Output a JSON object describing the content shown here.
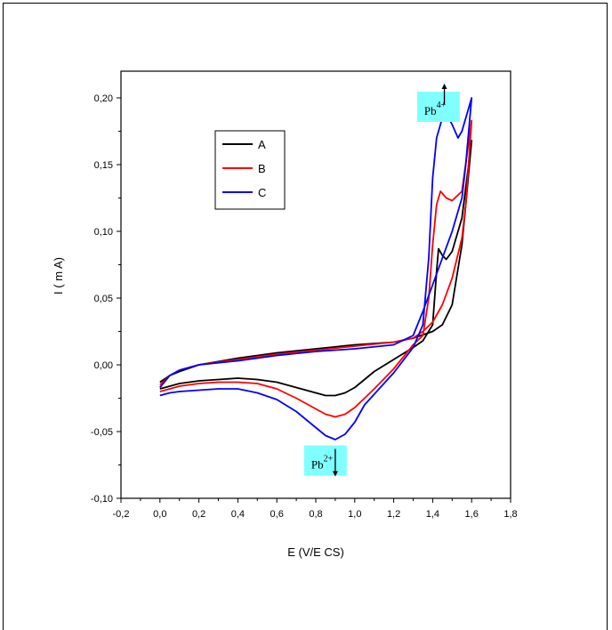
{
  "chart_data": {
    "type": "line",
    "xlabel": "E (V/E CS)",
    "ylabel": "I ( m A)",
    "xlim": [
      -0.2,
      1.8
    ],
    "ylim": [
      -0.1,
      0.22
    ],
    "x_ticks": [
      "-0,2",
      "0,0",
      "0,2",
      "0,4",
      "0,6",
      "0,8",
      "1,0",
      "1,2",
      "1,4",
      "1,6",
      "1,8"
    ],
    "y_ticks": [
      "-0,10",
      "-0,05",
      "0,00",
      "0,05",
      "0,10",
      "0,15",
      "0,20"
    ],
    "legend_position": "upper-left",
    "grid": false,
    "series": [
      {
        "name": "A",
        "color": "#000000",
        "forward": [
          [
            0,
            -0.018
          ],
          [
            0.05,
            -0.016
          ],
          [
            0.1,
            -0.014
          ],
          [
            0.2,
            -0.012
          ],
          [
            0.3,
            -0.011
          ],
          [
            0.4,
            -0.01
          ],
          [
            0.5,
            -0.011
          ],
          [
            0.6,
            -0.013
          ],
          [
            0.7,
            -0.017
          ],
          [
            0.8,
            -0.021
          ],
          [
            0.85,
            -0.023
          ],
          [
            0.9,
            -0.023
          ],
          [
            0.95,
            -0.021
          ],
          [
            1.0,
            -0.017
          ],
          [
            1.05,
            -0.011
          ],
          [
            1.1,
            -0.005
          ],
          [
            1.2,
            0.004
          ],
          [
            1.3,
            0.013
          ],
          [
            1.35,
            0.018
          ],
          [
            1.4,
            0.03
          ],
          [
            1.42,
            0.07
          ],
          [
            1.43,
            0.087
          ],
          [
            1.45,
            0.082
          ],
          [
            1.47,
            0.079
          ],
          [
            1.5,
            0.085
          ],
          [
            1.55,
            0.11
          ],
          [
            1.6,
            0.168
          ]
        ],
        "reverse": [
          [
            1.6,
            0.168
          ],
          [
            1.57,
            0.12
          ],
          [
            1.55,
            0.09
          ],
          [
            1.5,
            0.045
          ],
          [
            1.45,
            0.03
          ],
          [
            1.4,
            0.025
          ],
          [
            1.3,
            0.02
          ],
          [
            1.2,
            0.017
          ],
          [
            1.0,
            0.015
          ],
          [
            0.8,
            0.012
          ],
          [
            0.6,
            0.009
          ],
          [
            0.4,
            0.005
          ],
          [
            0.2,
            0.0
          ],
          [
            0.1,
            -0.005
          ],
          [
            0.05,
            -0.008
          ],
          [
            0,
            -0.013
          ]
        ]
      },
      {
        "name": "B",
        "color": "#ff0000",
        "forward": [
          [
            0,
            -0.02
          ],
          [
            0.05,
            -0.018
          ],
          [
            0.1,
            -0.016
          ],
          [
            0.2,
            -0.014
          ],
          [
            0.3,
            -0.013
          ],
          [
            0.4,
            -0.013
          ],
          [
            0.5,
            -0.014
          ],
          [
            0.6,
            -0.018
          ],
          [
            0.7,
            -0.025
          ],
          [
            0.8,
            -0.033
          ],
          [
            0.85,
            -0.037
          ],
          [
            0.9,
            -0.039
          ],
          [
            0.95,
            -0.037
          ],
          [
            1.0,
            -0.032
          ],
          [
            1.05,
            -0.025
          ],
          [
            1.1,
            -0.018
          ],
          [
            1.2,
            -0.003
          ],
          [
            1.3,
            0.015
          ],
          [
            1.35,
            0.022
          ],
          [
            1.38,
            0.05
          ],
          [
            1.4,
            0.09
          ],
          [
            1.42,
            0.12
          ],
          [
            1.44,
            0.13
          ],
          [
            1.47,
            0.125
          ],
          [
            1.5,
            0.123
          ],
          [
            1.55,
            0.13
          ],
          [
            1.6,
            0.183
          ]
        ],
        "reverse": [
          [
            1.6,
            0.183
          ],
          [
            1.57,
            0.12
          ],
          [
            1.55,
            0.095
          ],
          [
            1.5,
            0.065
          ],
          [
            1.45,
            0.045
          ],
          [
            1.4,
            0.032
          ],
          [
            1.35,
            0.025
          ],
          [
            1.3,
            0.02
          ],
          [
            1.2,
            0.017
          ],
          [
            1.0,
            0.014
          ],
          [
            0.8,
            0.011
          ],
          [
            0.6,
            0.008
          ],
          [
            0.4,
            0.004
          ],
          [
            0.2,
            0.0
          ],
          [
            0.1,
            -0.004
          ],
          [
            0.05,
            -0.008
          ],
          [
            0,
            -0.015
          ]
        ]
      },
      {
        "name": "C",
        "color": "#0000ff",
        "forward": [
          [
            0,
            -0.023
          ],
          [
            0.05,
            -0.021
          ],
          [
            0.1,
            -0.02
          ],
          [
            0.2,
            -0.019
          ],
          [
            0.3,
            -0.018
          ],
          [
            0.4,
            -0.018
          ],
          [
            0.5,
            -0.021
          ],
          [
            0.6,
            -0.026
          ],
          [
            0.7,
            -0.035
          ],
          [
            0.8,
            -0.047
          ],
          [
            0.85,
            -0.053
          ],
          [
            0.9,
            -0.056
          ],
          [
            0.95,
            -0.052
          ],
          [
            1.0,
            -0.043
          ],
          [
            1.05,
            -0.03
          ],
          [
            1.1,
            -0.022
          ],
          [
            1.2,
            -0.006
          ],
          [
            1.3,
            0.013
          ],
          [
            1.35,
            0.03
          ],
          [
            1.38,
            0.08
          ],
          [
            1.4,
            0.14
          ],
          [
            1.42,
            0.17
          ],
          [
            1.45,
            0.185
          ],
          [
            1.47,
            0.188
          ],
          [
            1.5,
            0.18
          ],
          [
            1.53,
            0.17
          ],
          [
            1.55,
            0.175
          ],
          [
            1.6,
            0.2
          ]
        ],
        "reverse": [
          [
            1.6,
            0.2
          ],
          [
            1.57,
            0.15
          ],
          [
            1.55,
            0.125
          ],
          [
            1.5,
            0.1
          ],
          [
            1.45,
            0.08
          ],
          [
            1.4,
            0.06
          ],
          [
            1.35,
            0.04
          ],
          [
            1.3,
            0.022
          ],
          [
            1.2,
            0.015
          ],
          [
            1.0,
            0.012
          ],
          [
            0.8,
            0.01
          ],
          [
            0.6,
            0.007
          ],
          [
            0.4,
            0.003
          ],
          [
            0.2,
            0.0
          ],
          [
            0.1,
            -0.004
          ],
          [
            0.05,
            -0.008
          ],
          [
            0,
            -0.017
          ]
        ]
      }
    ],
    "annotations": [
      {
        "text": "Pb",
        "superscript": "4+",
        "x": 1.32,
        "y": 0.19,
        "arrow_x": 1.46,
        "arrow_from_y": 0.195,
        "arrow_to_y": 0.21
      },
      {
        "text": "Pb",
        "superscript": "2+",
        "x": 0.74,
        "y": -0.075,
        "arrow_x": 0.9,
        "arrow_from_y": -0.063,
        "arrow_to_y": -0.083
      }
    ]
  }
}
